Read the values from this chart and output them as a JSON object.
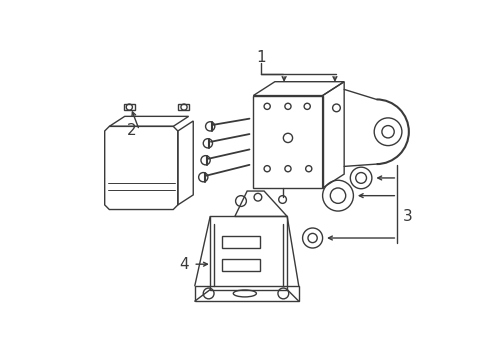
{
  "background_color": "#ffffff",
  "line_color": "#3a3a3a",
  "line_width": 1.0,
  "figsize": [
    4.89,
    3.6
  ],
  "dpi": 100,
  "callout_labels": [
    "1",
    "2",
    "3",
    "4"
  ],
  "label_fontsize": 11
}
